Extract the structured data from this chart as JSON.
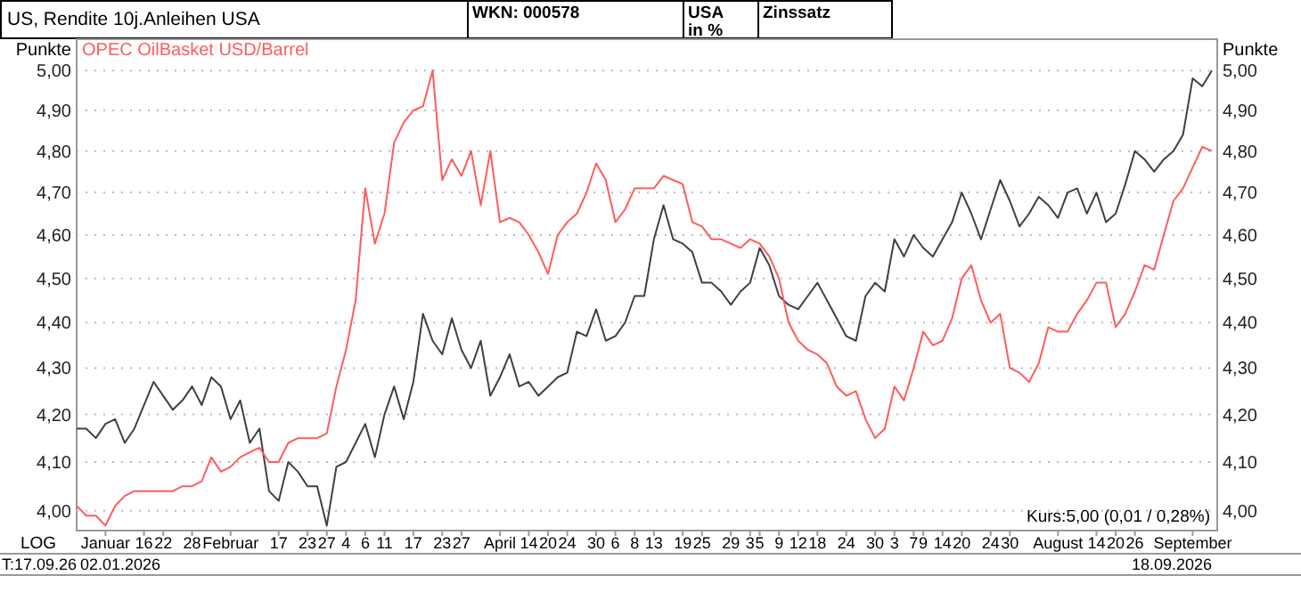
{
  "chart_data": {
    "type": "line",
    "title": "US, Rendite 10j.Anleihen USA",
    "ylabel": "Punkte",
    "y2label": "Punkte",
    "annotations": [
      "WKN: 000578",
      "USA in %",
      "Zinssatz",
      "LOG",
      "T:17.09.26",
      "02.01.2026",
      "18.09.2026",
      "Kurs:5,00 (0,01 / 0,28%)"
    ],
    "categories": [
      null,
      null,
      null,
      "Januar",
      null,
      null,
      null,
      "16",
      null,
      "22",
      null,
      null,
      "28",
      null,
      null,
      null,
      "Februar",
      null,
      null,
      null,
      null,
      "17",
      null,
      null,
      "23",
      null,
      "27",
      null,
      "4",
      null,
      "6",
      null,
      "11",
      null,
      null,
      "17",
      null,
      null,
      "23",
      null,
      "27",
      null,
      null,
      null,
      "April",
      null,
      null,
      "14",
      null,
      "20",
      null,
      "24",
      null,
      null,
      "30",
      null,
      "6",
      null,
      "8",
      null,
      "13",
      null,
      null,
      "19",
      null,
      "25",
      null,
      null,
      "29",
      null,
      "3",
      "5",
      null,
      "9",
      null,
      "12",
      null,
      "18",
      null,
      null,
      "24",
      null,
      null,
      "30",
      null,
      "3",
      null,
      "7",
      "9",
      null,
      "14",
      null,
      "20",
      null,
      null,
      "24",
      null,
      "30",
      null,
      null,
      null,
      null,
      "August",
      null,
      null,
      null,
      "14",
      null,
      "20",
      null,
      "26",
      null,
      null,
      null,
      null,
      null,
      "September",
      null,
      null
    ],
    "series": [
      {
        "color": "#404040",
        "values": [
          4.17,
          4.17,
          4.15,
          4.18,
          4.19,
          4.14,
          4.17,
          4.22,
          4.27,
          4.24,
          4.21,
          4.23,
          4.26,
          4.22,
          4.28,
          4.26,
          4.19,
          4.23,
          4.14,
          4.17,
          4.04,
          4.02,
          4.1,
          4.08,
          4.05,
          4.05,
          3.97,
          4.09,
          4.1,
          4.14,
          4.18,
          4.11,
          4.2,
          4.26,
          4.19,
          4.27,
          4.42,
          4.36,
          4.33,
          4.41,
          4.34,
          4.3,
          4.36,
          4.24,
          4.28,
          4.33,
          4.26,
          4.27,
          4.24,
          4.26,
          4.28,
          4.29,
          4.38,
          4.37,
          4.43,
          4.36,
          4.37,
          4.4,
          4.46,
          4.46,
          4.59,
          4.67,
          4.59,
          4.58,
          4.56,
          4.49,
          4.49,
          4.47,
          4.44,
          4.47,
          4.49,
          4.57,
          4.53,
          4.46,
          4.44,
          4.43,
          4.46,
          4.49,
          4.45,
          4.41,
          4.37,
          4.36,
          4.46,
          4.49,
          4.47,
          4.59,
          4.55,
          4.6,
          4.57,
          4.55,
          4.59,
          4.63,
          4.7,
          4.65,
          4.59,
          4.66,
          4.73,
          4.68,
          4.62,
          4.65,
          4.69,
          4.67,
          4.64,
          4.7,
          4.71,
          4.65,
          4.7,
          4.63,
          4.65,
          4.72,
          4.8,
          4.78,
          4.75,
          4.78,
          4.8,
          4.84,
          4.98,
          4.96,
          5.0
        ]
      },
      {
        "name": "OPEC OilBasket USD/Barrel",
        "color": "#ff5c5c",
        "values": [
          4.01,
          3.99,
          3.99,
          3.97,
          4.01,
          4.03,
          4.04,
          4.04,
          4.04,
          4.04,
          4.04,
          4.05,
          4.05,
          4.06,
          4.11,
          4.08,
          4.09,
          4.11,
          4.12,
          4.13,
          4.1,
          4.1,
          4.14,
          4.15,
          4.15,
          4.15,
          4.16,
          4.26,
          4.34,
          4.45,
          4.71,
          4.58,
          4.65,
          4.82,
          4.87,
          4.9,
          4.91,
          5.0,
          4.73,
          4.78,
          4.74,
          4.8,
          4.67,
          4.8,
          4.63,
          4.64,
          4.63,
          4.6,
          4.56,
          4.51,
          4.6,
          4.63,
          4.65,
          4.7,
          4.77,
          4.73,
          4.63,
          4.66,
          4.71,
          4.71,
          4.71,
          4.74,
          4.73,
          4.72,
          4.63,
          4.62,
          4.59,
          4.59,
          4.58,
          4.57,
          4.59,
          4.58,
          4.55,
          4.5,
          4.4,
          4.36,
          4.34,
          4.33,
          4.31,
          4.26,
          4.24,
          4.25,
          4.19,
          4.15,
          4.17,
          4.26,
          4.23,
          4.3,
          4.38,
          4.35,
          4.36,
          4.41,
          4.5,
          4.53,
          4.45,
          4.4,
          4.42,
          4.3,
          4.29,
          4.27,
          4.31,
          4.39,
          4.38,
          4.38,
          4.42,
          4.45,
          4.49,
          4.49,
          4.39,
          4.42,
          4.47,
          4.53,
          4.52,
          4.6,
          4.68,
          4.71,
          4.76,
          4.81,
          4.8
        ]
      }
    ],
    "ylim": [
      3.96,
      5.08
    ],
    "yticks": [
      {
        "value": 4,
        "label": "4,00"
      },
      {
        "value": 4.1,
        "label": "4,10"
      },
      {
        "value": 4.2,
        "label": "4,20"
      },
      {
        "value": 4.3,
        "label": "4,30"
      },
      {
        "value": 4.4,
        "label": "4,40"
      },
      {
        "value": 4.5,
        "label": "4,50"
      },
      {
        "value": 4.6,
        "label": "4,60"
      },
      {
        "value": 4.7,
        "label": "4,70"
      },
      {
        "value": 4.8,
        "label": "4,80"
      },
      {
        "value": 4.9,
        "label": "4,90"
      },
      {
        "value": 5,
        "label": "5,00"
      }
    ],
    "log": true,
    "grid": "y",
    "legend": "top left",
    "line_style": "solid",
    "marker": "none"
  }
}
